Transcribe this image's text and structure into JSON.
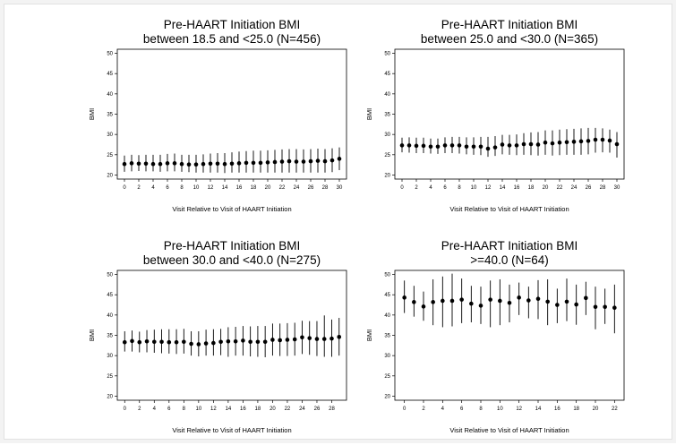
{
  "chart_data": [
    {
      "type": "scatter",
      "title_line1": "Pre-HAART Initiation BMI",
      "title_line2": "between 18.5 and <25.0 (N=456)",
      "xlabel": "Visit Relative to Visit of HAART Initiation",
      "ylabel": "BMI",
      "xlim": [
        -1,
        31
      ],
      "ylim": [
        19,
        51
      ],
      "xticks": [
        "0",
        "2",
        "4",
        "6",
        "8",
        "10",
        "12",
        "14",
        "16",
        "18",
        "20",
        "22",
        "24",
        "26",
        "28",
        "30"
      ],
      "yticks": [
        "20",
        "25",
        "30",
        "35",
        "40",
        "45",
        "50"
      ],
      "x": [
        0,
        1,
        2,
        3,
        4,
        5,
        6,
        7,
        8,
        9,
        10,
        11,
        12,
        13,
        14,
        15,
        16,
        17,
        18,
        19,
        20,
        21,
        22,
        23,
        24,
        25,
        26,
        27,
        28,
        29,
        30
      ],
      "mean": [
        22.7,
        22.9,
        22.8,
        22.8,
        22.7,
        22.7,
        22.9,
        22.9,
        22.7,
        22.6,
        22.6,
        22.7,
        22.8,
        22.8,
        22.7,
        22.8,
        22.9,
        23.0,
        23.0,
        23.0,
        23.1,
        23.2,
        23.3,
        23.4,
        23.3,
        23.3,
        23.4,
        23.5,
        23.4,
        23.6,
        24.0
      ],
      "low": [
        20.8,
        20.9,
        21.0,
        20.9,
        20.9,
        20.8,
        20.9,
        20.9,
        20.8,
        20.7,
        20.6,
        20.6,
        20.6,
        20.6,
        20.5,
        20.6,
        20.6,
        20.6,
        20.6,
        20.6,
        20.6,
        20.6,
        20.6,
        20.6,
        20.6,
        20.6,
        20.6,
        20.6,
        20.6,
        20.7,
        21.2
      ],
      "high": [
        24.8,
        25.0,
        24.9,
        25.0,
        25.0,
        25.0,
        25.2,
        25.3,
        25.0,
        25.0,
        25.0,
        25.1,
        25.3,
        25.4,
        25.4,
        25.6,
        25.8,
        25.9,
        26.0,
        26.0,
        26.1,
        26.2,
        26.3,
        26.4,
        26.4,
        26.3,
        26.4,
        26.5,
        26.4,
        26.6,
        26.8
      ]
    },
    {
      "type": "scatter",
      "title_line1": "Pre-HAART Initiation BMI",
      "title_line2": "between 25.0 and <30.0 (N=365)",
      "xlabel": "Visit Relative to Visit of HAART Initiation",
      "ylabel": "BMI",
      "xlim": [
        -1,
        31
      ],
      "ylim": [
        19,
        51
      ],
      "xticks": [
        "0",
        "2",
        "4",
        "6",
        "8",
        "10",
        "12",
        "14",
        "16",
        "18",
        "20",
        "22",
        "24",
        "26",
        "28",
        "30"
      ],
      "yticks": [
        "20",
        "25",
        "30",
        "35",
        "40",
        "45",
        "50"
      ],
      "x": [
        0,
        1,
        2,
        3,
        4,
        5,
        6,
        7,
        8,
        9,
        10,
        11,
        12,
        13,
        14,
        15,
        16,
        17,
        18,
        19,
        20,
        21,
        22,
        23,
        24,
        25,
        26,
        27,
        28,
        29,
        30
      ],
      "mean": [
        27.3,
        27.3,
        27.2,
        27.2,
        27.0,
        27.0,
        27.3,
        27.3,
        27.3,
        27.0,
        27.0,
        27.0,
        26.5,
        26.8,
        27.5,
        27.3,
        27.3,
        27.6,
        27.6,
        27.5,
        28.0,
        27.8,
        28.0,
        28.1,
        28.2,
        28.3,
        28.4,
        28.7,
        28.7,
        28.5,
        27.6
      ],
      "low": [
        25.6,
        25.5,
        25.4,
        25.4,
        25.3,
        25.2,
        25.4,
        25.4,
        25.3,
        25.1,
        25.0,
        24.9,
        24.5,
        24.7,
        25.1,
        25.0,
        24.9,
        25.0,
        24.9,
        24.8,
        25.0,
        24.8,
        24.9,
        25.0,
        25.0,
        25.0,
        25.1,
        25.5,
        25.6,
        25.5,
        24.3
      ],
      "high": [
        29.2,
        29.3,
        29.2,
        29.2,
        29.0,
        29.0,
        29.3,
        29.4,
        29.4,
        29.3,
        29.3,
        29.4,
        29.4,
        29.6,
        29.9,
        29.9,
        30.0,
        30.3,
        30.5,
        30.6,
        31.0,
        31.0,
        31.2,
        31.3,
        31.4,
        31.5,
        31.6,
        31.6,
        31.5,
        31.2,
        30.6
      ]
    },
    {
      "type": "scatter",
      "title_line1": "Pre-HAART Initiation BMI",
      "title_line2": "between 30.0 and <40.0 (N=275)",
      "xlabel": "Visit Relative to Visit of HAART Initiation",
      "ylabel": "BMI",
      "xlim": [
        -1,
        30
      ],
      "ylim": [
        19,
        51
      ],
      "xticks": [
        "0",
        "2",
        "4",
        "6",
        "8",
        "10",
        "12",
        "14",
        "16",
        "18",
        "20",
        "22",
        "24",
        "26",
        "28"
      ],
      "yticks": [
        "20",
        "25",
        "30",
        "35",
        "40",
        "45",
        "50"
      ],
      "x": [
        0,
        1,
        2,
        3,
        4,
        5,
        6,
        7,
        8,
        9,
        10,
        11,
        12,
        13,
        14,
        15,
        16,
        17,
        18,
        19,
        20,
        21,
        22,
        23,
        24,
        25,
        26,
        27,
        28,
        29
      ],
      "mean": [
        33.3,
        33.6,
        33.3,
        33.5,
        33.4,
        33.4,
        33.3,
        33.3,
        33.4,
        32.9,
        32.8,
        33.0,
        33.1,
        33.4,
        33.5,
        33.5,
        33.7,
        33.4,
        33.4,
        33.4,
        33.9,
        33.8,
        33.9,
        34.0,
        34.5,
        34.3,
        34.1,
        34.1,
        34.2,
        34.6
      ],
      "low": [
        31.0,
        31.0,
        30.8,
        30.8,
        30.7,
        30.6,
        30.5,
        30.4,
        30.5,
        30.0,
        29.8,
        30.0,
        30.0,
        30.1,
        29.7,
        30.0,
        30.0,
        29.8,
        29.7,
        29.6,
        30.0,
        29.9,
        29.9,
        30.0,
        30.4,
        30.2,
        29.9,
        29.7,
        29.7,
        30.0
      ],
      "high": [
        36.0,
        36.2,
        35.9,
        36.3,
        36.4,
        36.5,
        36.5,
        36.5,
        36.6,
        36.0,
        36.0,
        36.4,
        36.5,
        36.6,
        37.0,
        37.1,
        37.3,
        37.2,
        37.3,
        37.3,
        37.9,
        37.9,
        38.0,
        38.1,
        38.6,
        38.5,
        38.5,
        39.9,
        38.9,
        39.3
      ]
    },
    {
      "type": "scatter",
      "title_line1": "Pre-HAART Initiation BMI",
      "title_line2": ">=40.0 (N=64)",
      "xlabel": "Visit Relative to Visit of HAART Initiation",
      "ylabel": "BMI",
      "xlim": [
        -1,
        23
      ],
      "ylim": [
        19,
        51
      ],
      "xticks": [
        "0",
        "2",
        "4",
        "6",
        "8",
        "10",
        "12",
        "14",
        "16",
        "18",
        "20",
        "22"
      ],
      "yticks": [
        "20",
        "25",
        "30",
        "35",
        "40",
        "45",
        "50"
      ],
      "x": [
        0,
        1,
        2,
        3,
        4,
        5,
        6,
        7,
        8,
        9,
        10,
        11,
        12,
        13,
        14,
        15,
        16,
        17,
        18,
        19,
        20,
        21,
        22
      ],
      "mean": [
        44.3,
        43.2,
        42.1,
        43.2,
        43.5,
        43.5,
        43.8,
        42.8,
        42.3,
        43.8,
        43.5,
        43.0,
        44.3,
        43.6,
        44.0,
        43.3,
        42.5,
        43.3,
        42.6,
        44.2,
        42.0,
        42.0,
        41.8
      ],
      "low": [
        40.5,
        39.6,
        38.6,
        37.5,
        37.0,
        37.2,
        38.0,
        38.2,
        37.8,
        37.0,
        37.5,
        38.2,
        40.0,
        39.2,
        39.0,
        37.5,
        38.0,
        38.5,
        37.6,
        40.0,
        36.5,
        37.8,
        35.5
      ],
      "high": [
        48.5,
        47.2,
        45.8,
        48.8,
        49.5,
        50.2,
        49.0,
        47.2,
        47.0,
        48.5,
        48.8,
        47.5,
        48.0,
        47.0,
        48.6,
        48.8,
        46.5,
        49.0,
        47.5,
        48.2,
        47.0,
        46.5,
        47.5
      ]
    }
  ]
}
